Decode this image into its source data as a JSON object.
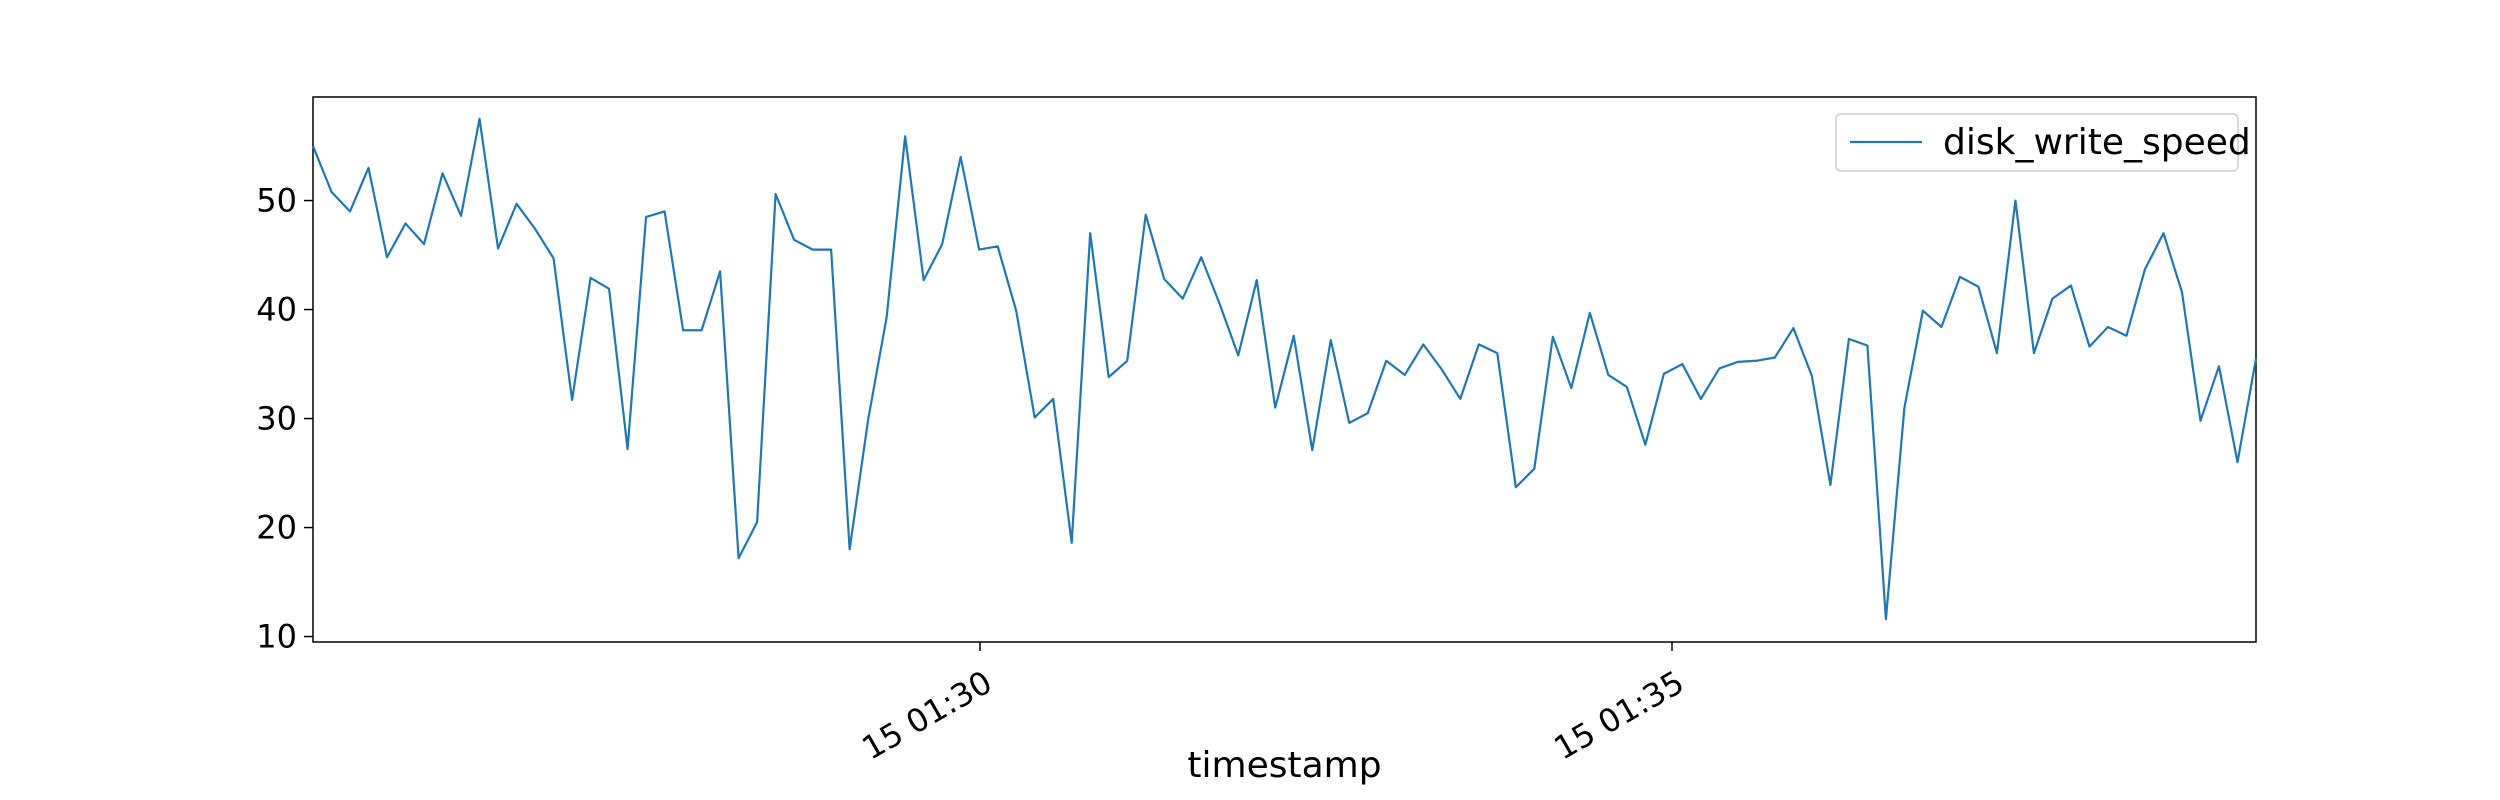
{
  "chart_data": {
    "type": "line",
    "title": "",
    "xlabel": "timestamp",
    "ylabel": "",
    "x_ticks": [
      "15 01:30",
      "15 01:35"
    ],
    "y_ticks": [
      10,
      20,
      30,
      40,
      50
    ],
    "ylim": [
      9.5,
      59.5
    ],
    "grid": false,
    "legend": "top-right",
    "series": [
      {
        "name": "disk_write_speed",
        "color": "#1f77b4",
        "values": [
          55.0,
          50.8,
          49.0,
          53.0,
          44.8,
          47.9,
          46.0,
          52.5,
          48.6,
          57.5,
          45.6,
          49.7,
          47.4,
          44.7,
          31.7,
          42.9,
          41.9,
          27.2,
          48.5,
          49.0,
          38.1,
          38.1,
          43.5,
          17.2,
          20.5,
          50.6,
          46.4,
          45.5,
          45.5,
          18.0,
          29.9,
          39.3,
          55.9,
          42.7,
          46.0,
          54.0,
          45.5,
          45.8,
          39.9,
          30.1,
          31.8,
          18.6,
          47.0,
          33.8,
          35.3,
          48.7,
          42.8,
          41.0,
          44.8,
          40.5,
          35.8,
          42.7,
          31.0,
          37.6,
          27.1,
          37.2,
          29.6,
          30.5,
          35.3,
          34.0,
          36.8,
          34.5,
          31.8,
          36.8,
          36.0,
          23.7,
          25.4,
          37.5,
          32.8,
          39.7,
          34.0,
          32.9,
          27.6,
          34.1,
          35.0,
          31.8,
          34.6,
          35.2,
          35.3,
          35.6,
          38.3,
          33.9,
          23.9,
          37.3,
          36.7,
          11.6,
          31.0,
          39.9,
          38.4,
          43.0,
          42.1,
          36.0,
          50.0,
          36.0,
          41.0,
          42.2,
          36.6,
          38.4,
          37.6,
          43.7,
          47.0,
          41.6,
          29.8,
          34.8,
          26.0,
          35.5
        ]
      }
    ]
  }
}
